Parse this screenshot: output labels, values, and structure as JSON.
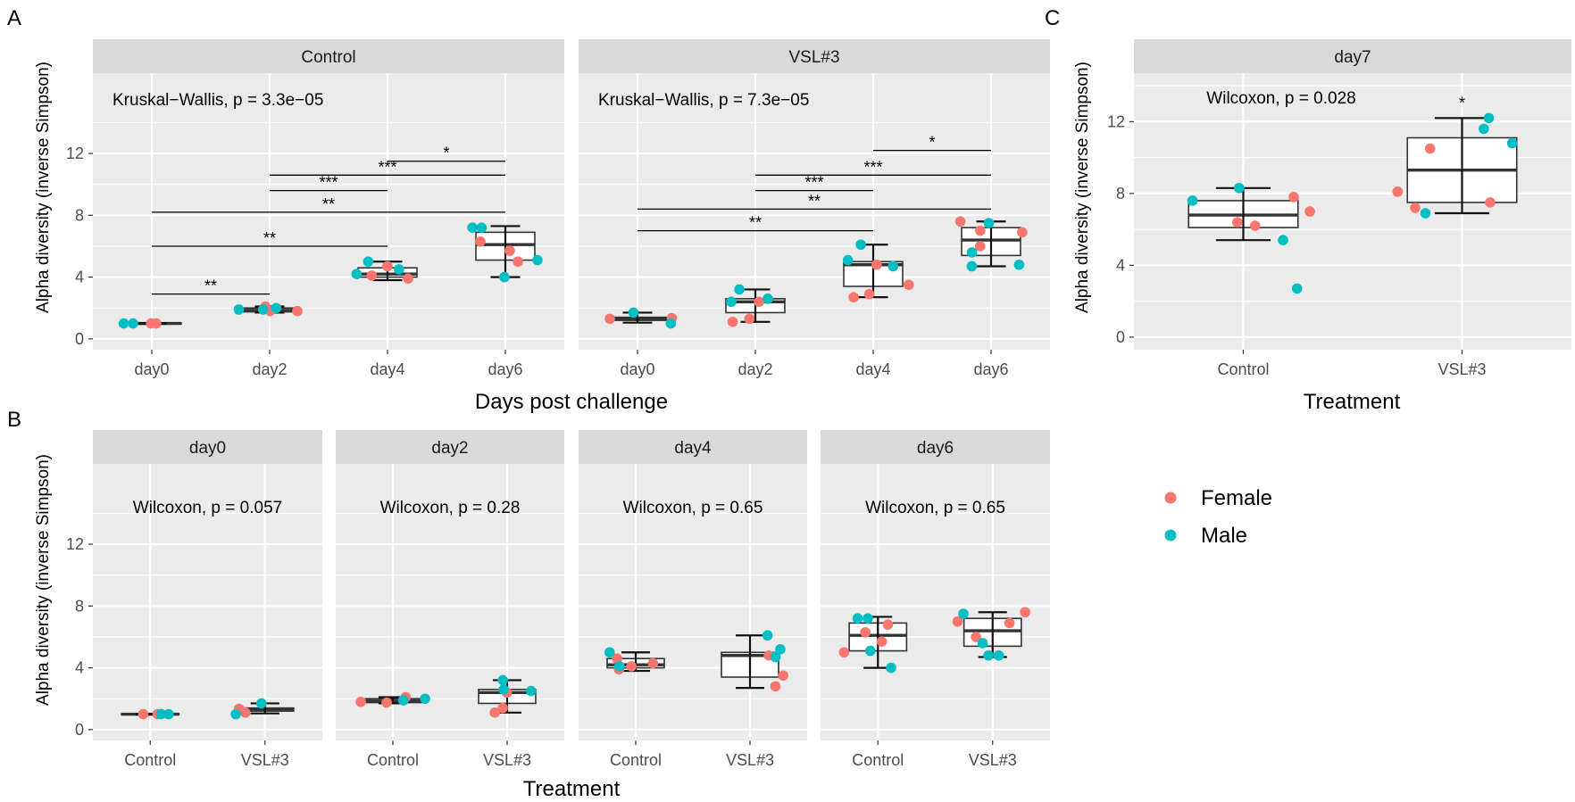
{
  "colors": {
    "Female": "#F8766D",
    "Male": "#00BFC4",
    "panel": "#EBEBEB",
    "strip": "#D9D9D9",
    "grid": "#FFFFFF",
    "box": "#333333"
  },
  "legend": {
    "items": [
      {
        "label": "Female",
        "color": "#F8766D"
      },
      {
        "label": "Male",
        "color": "#00BFC4"
      }
    ]
  },
  "chart_data": [
    {
      "tag": "A",
      "type": "box",
      "ylabel": "Alpha diversity (inverse Simpson)",
      "xlabel": "Days post challenge",
      "yticks": [
        "0",
        "4",
        "8",
        "12"
      ],
      "ylim": [
        -0.7,
        17.2
      ],
      "categories": [
        "day0",
        "day2",
        "day4",
        "day6"
      ],
      "facets": [
        {
          "strip": "Control",
          "annotation": "Kruskal−Wallis, p = 3.3e−05",
          "boxes": [
            {
              "q1": 1.0,
              "median": 1.0,
              "q3": 1.02,
              "low": 0.97,
              "high": 1.03
            },
            {
              "q1": 1.75,
              "median": 1.85,
              "q3": 2.0,
              "low": 1.7,
              "high": 2.1
            },
            {
              "q1": 4.0,
              "median": 4.2,
              "q3": 4.6,
              "low": 3.8,
              "high": 5.0
            },
            {
              "q1": 5.1,
              "median": 6.1,
              "q3": 6.9,
              "low": 4.0,
              "high": 7.3
            }
          ],
          "points": [
            {
              "x": "day0",
              "y": 1.0,
              "sex": "Female"
            },
            {
              "x": "day0",
              "y": 1.0,
              "sex": "Female"
            },
            {
              "x": "day0",
              "y": 1.0,
              "sex": "Male"
            },
            {
              "x": "day0",
              "y": 1.0,
              "sex": "Male"
            },
            {
              "x": "day2",
              "y": 2.1,
              "sex": "Female"
            },
            {
              "x": "day2",
              "y": 1.8,
              "sex": "Female"
            },
            {
              "x": "day2",
              "y": 1.9,
              "sex": "Male"
            },
            {
              "x": "day2",
              "y": 1.8,
              "sex": "Female"
            },
            {
              "x": "day2",
              "y": 2.0,
              "sex": "Male"
            },
            {
              "x": "day2",
              "y": 1.9,
              "sex": "Male"
            },
            {
              "x": "day4",
              "y": 4.1,
              "sex": "Female"
            },
            {
              "x": "day4",
              "y": 3.9,
              "sex": "Female"
            },
            {
              "x": "day4",
              "y": 4.5,
              "sex": "Male"
            },
            {
              "x": "day4",
              "y": 4.2,
              "sex": "Male"
            },
            {
              "x": "day4",
              "y": 4.7,
              "sex": "Female"
            },
            {
              "x": "day4",
              "y": 5.0,
              "sex": "Male"
            },
            {
              "x": "day6",
              "y": 5.0,
              "sex": "Female"
            },
            {
              "x": "day6",
              "y": 6.3,
              "sex": "Female"
            },
            {
              "x": "day6",
              "y": 5.7,
              "sex": "Female"
            },
            {
              "x": "day6",
              "y": 4.0,
              "sex": "Male"
            },
            {
              "x": "day6",
              "y": 7.2,
              "sex": "Male"
            },
            {
              "x": "day6",
              "y": 7.2,
              "sex": "Male"
            },
            {
              "x": "day6",
              "y": 5.1,
              "sex": "Male"
            }
          ],
          "comparisons": [
            {
              "from": "day0",
              "to": "day2",
              "y": 2.9,
              "label": "**"
            },
            {
              "from": "day0",
              "to": "day4",
              "y": 6.0,
              "label": "**"
            },
            {
              "from": "day0",
              "to": "day6",
              "y": 8.2,
              "label": "**"
            },
            {
              "from": "day2",
              "to": "day4",
              "y": 9.6,
              "label": "***"
            },
            {
              "from": "day2",
              "to": "day6",
              "y": 10.6,
              "label": "***"
            },
            {
              "from": "day4",
              "to": "day6",
              "y": 11.5,
              "label": "*"
            }
          ]
        },
        {
          "strip": "VSL#3",
          "annotation": "Kruskal−Wallis, p = 7.3e−05",
          "boxes": [
            {
              "q1": 1.2,
              "median": 1.3,
              "q3": 1.4,
              "low": 1.05,
              "high": 1.7
            },
            {
              "q1": 1.7,
              "median": 2.4,
              "q3": 2.6,
              "low": 1.1,
              "high": 3.2
            },
            {
              "q1": 3.4,
              "median": 4.8,
              "q3": 5.0,
              "low": 2.7,
              "high": 6.1
            },
            {
              "q1": 5.4,
              "median": 6.4,
              "q3": 7.2,
              "low": 4.7,
              "high": 7.6
            }
          ],
          "points": [
            {
              "x": "day0",
              "y": 1.35,
              "sex": "Female"
            },
            {
              "x": "day0",
              "y": 1.3,
              "sex": "Female"
            },
            {
              "x": "day0",
              "y": 1.7,
              "sex": "Male"
            },
            {
              "x": "day0",
              "y": 1.0,
              "sex": "Male"
            },
            {
              "x": "day2",
              "y": 1.1,
              "sex": "Female"
            },
            {
              "x": "day2",
              "y": 1.3,
              "sex": "Female"
            },
            {
              "x": "day2",
              "y": 2.4,
              "sex": "Female"
            },
            {
              "x": "day2",
              "y": 2.6,
              "sex": "Male"
            },
            {
              "x": "day2",
              "y": 3.2,
              "sex": "Male"
            },
            {
              "x": "day2",
              "y": 2.4,
              "sex": "Male"
            },
            {
              "x": "day4",
              "y": 3.5,
              "sex": "Female"
            },
            {
              "x": "day4",
              "y": 2.9,
              "sex": "Female"
            },
            {
              "x": "day4",
              "y": 2.7,
              "sex": "Female"
            },
            {
              "x": "day4",
              "y": 4.8,
              "sex": "Female"
            },
            {
              "x": "day4",
              "y": 6.1,
              "sex": "Male"
            },
            {
              "x": "day4",
              "y": 5.1,
              "sex": "Male"
            },
            {
              "x": "day4",
              "y": 4.7,
              "sex": "Male"
            },
            {
              "x": "day6",
              "y": 7.0,
              "sex": "Female"
            },
            {
              "x": "day6",
              "y": 6.0,
              "sex": "Female"
            },
            {
              "x": "day6",
              "y": 7.6,
              "sex": "Female"
            },
            {
              "x": "day6",
              "y": 6.9,
              "sex": "Female"
            },
            {
              "x": "day6",
              "y": 5.6,
              "sex": "Male"
            },
            {
              "x": "day6",
              "y": 4.8,
              "sex": "Male"
            },
            {
              "x": "day6",
              "y": 7.5,
              "sex": "Male"
            },
            {
              "x": "day6",
              "y": 4.7,
              "sex": "Male"
            }
          ],
          "comparisons": [
            {
              "from": "day0",
              "to": "day4",
              "y": 7.0,
              "label": "**"
            },
            {
              "from": "day0",
              "to": "day6",
              "y": 8.4,
              "label": "**"
            },
            {
              "from": "day2",
              "to": "day4",
              "y": 9.6,
              "label": "***"
            },
            {
              "from": "day2",
              "to": "day6",
              "y": 10.6,
              "label": "***"
            },
            {
              "from": "day4",
              "to": "day6",
              "y": 12.2,
              "label": "*"
            }
          ]
        }
      ]
    },
    {
      "tag": "B",
      "type": "box",
      "ylabel": "Alpha diversity (inverse Simpson)",
      "xlabel": "Treatment",
      "yticks": [
        "0",
        "4",
        "8",
        "12"
      ],
      "ylim": [
        -0.7,
        17.2
      ],
      "categories": [
        "Control",
        "VSL#3"
      ],
      "facets": [
        {
          "strip": "day0",
          "annotation": "Wilcoxon, p = 0.057",
          "boxes": [
            {
              "q1": 1.0,
              "median": 1.0,
              "q3": 1.02,
              "low": 0.97,
              "high": 1.03
            },
            {
              "q1": 1.2,
              "median": 1.3,
              "q3": 1.4,
              "low": 1.05,
              "high": 1.7
            }
          ],
          "points": [
            {
              "x": "Control",
              "y": 1.0,
              "sex": "Female"
            },
            {
              "x": "Control",
              "y": 1.0,
              "sex": "Female"
            },
            {
              "x": "Control",
              "y": 1.0,
              "sex": "Male"
            },
            {
              "x": "Control",
              "y": 1.0,
              "sex": "Male"
            },
            {
              "x": "VSL#3",
              "y": 1.35,
              "sex": "Female"
            },
            {
              "x": "VSL#3",
              "y": 1.1,
              "sex": "Female"
            },
            {
              "x": "VSL#3",
              "y": 1.7,
              "sex": "Male"
            },
            {
              "x": "VSL#3",
              "y": 1.0,
              "sex": "Male"
            }
          ]
        },
        {
          "strip": "day2",
          "annotation": "Wilcoxon, p = 0.28",
          "boxes": [
            {
              "q1": 1.75,
              "median": 1.85,
              "q3": 2.0,
              "low": 1.7,
              "high": 2.1
            },
            {
              "q1": 1.7,
              "median": 2.4,
              "q3": 2.6,
              "low": 1.1,
              "high": 3.2
            }
          ],
          "points": [
            {
              "x": "Control",
              "y": 1.8,
              "sex": "Female"
            },
            {
              "x": "Control",
              "y": 1.75,
              "sex": "Female"
            },
            {
              "x": "Control",
              "y": 2.1,
              "sex": "Female"
            },
            {
              "x": "Control",
              "y": 1.9,
              "sex": "Male"
            },
            {
              "x": "Control",
              "y": 2.0,
              "sex": "Male"
            },
            {
              "x": "VSL#3",
              "y": 1.1,
              "sex": "Female"
            },
            {
              "x": "VSL#3",
              "y": 1.4,
              "sex": "Female"
            },
            {
              "x": "VSL#3",
              "y": 2.4,
              "sex": "Female"
            },
            {
              "x": "VSL#3",
              "y": 3.2,
              "sex": "Male"
            },
            {
              "x": "VSL#3",
              "y": 2.5,
              "sex": "Male"
            },
            {
              "x": "VSL#3",
              "y": 2.6,
              "sex": "Male"
            }
          ]
        },
        {
          "strip": "day4",
          "annotation": "Wilcoxon, p = 0.65",
          "boxes": [
            {
              "q1": 4.0,
              "median": 4.2,
              "q3": 4.6,
              "low": 3.8,
              "high": 5.0
            },
            {
              "q1": 3.4,
              "median": 4.8,
              "q3": 5.0,
              "low": 2.7,
              "high": 6.1
            }
          ],
          "points": [
            {
              "x": "Control",
              "y": 4.1,
              "sex": "Female"
            },
            {
              "x": "Control",
              "y": 3.9,
              "sex": "Female"
            },
            {
              "x": "Control",
              "y": 4.6,
              "sex": "Female"
            },
            {
              "x": "Control",
              "y": 4.3,
              "sex": "Female"
            },
            {
              "x": "Control",
              "y": 5.0,
              "sex": "Male"
            },
            {
              "x": "Control",
              "y": 4.1,
              "sex": "Male"
            },
            {
              "x": "VSL#3",
              "y": 4.8,
              "sex": "Female"
            },
            {
              "x": "VSL#3",
              "y": 2.8,
              "sex": "Female"
            },
            {
              "x": "VSL#3",
              "y": 3.5,
              "sex": "Female"
            },
            {
              "x": "VSL#3",
              "y": 5.2,
              "sex": "Male"
            },
            {
              "x": "VSL#3",
              "y": 4.7,
              "sex": "Male"
            },
            {
              "x": "VSL#3",
              "y": 6.1,
              "sex": "Male"
            }
          ]
        },
        {
          "strip": "day6",
          "annotation": "Wilcoxon, p = 0.65",
          "boxes": [
            {
              "q1": 5.1,
              "median": 6.1,
              "q3": 6.9,
              "low": 4.0,
              "high": 7.3
            },
            {
              "q1": 5.4,
              "median": 6.4,
              "q3": 7.2,
              "low": 4.7,
              "high": 7.6
            }
          ],
          "points": [
            {
              "x": "Control",
              "y": 6.8,
              "sex": "Female"
            },
            {
              "x": "Control",
              "y": 5.7,
              "sex": "Female"
            },
            {
              "x": "Control",
              "y": 5.0,
              "sex": "Female"
            },
            {
              "x": "Control",
              "y": 6.3,
              "sex": "Female"
            },
            {
              "x": "Control",
              "y": 7.2,
              "sex": "Male"
            },
            {
              "x": "Control",
              "y": 7.2,
              "sex": "Male"
            },
            {
              "x": "Control",
              "y": 5.1,
              "sex": "Male"
            },
            {
              "x": "Control",
              "y": 4.0,
              "sex": "Male"
            },
            {
              "x": "VSL#3",
              "y": 6.9,
              "sex": "Female"
            },
            {
              "x": "VSL#3",
              "y": 6.0,
              "sex": "Female"
            },
            {
              "x": "VSL#3",
              "y": 7.6,
              "sex": "Female"
            },
            {
              "x": "VSL#3",
              "y": 7.0,
              "sex": "Female"
            },
            {
              "x": "VSL#3",
              "y": 5.6,
              "sex": "Male"
            },
            {
              "x": "VSL#3",
              "y": 4.8,
              "sex": "Male"
            },
            {
              "x": "VSL#3",
              "y": 4.8,
              "sex": "Male"
            },
            {
              "x": "VSL#3",
              "y": 7.5,
              "sex": "Male"
            }
          ]
        }
      ]
    },
    {
      "tag": "C",
      "type": "box",
      "ylabel": "Alpha diversity (inverse Simpson)",
      "xlabel": "Treatment",
      "yticks": [
        "0",
        "4",
        "8",
        "12"
      ],
      "ylim": [
        -0.7,
        14.7
      ],
      "categories": [
        "Control",
        "VSL#3"
      ],
      "facets": [
        {
          "strip": "day7",
          "annotation": "Wilcoxon, p = 0.028",
          "boxes": [
            {
              "q1": 6.1,
              "median": 6.8,
              "q3": 7.6,
              "low": 5.4,
              "high": 8.3
            },
            {
              "q1": 7.5,
              "median": 9.3,
              "q3": 11.1,
              "low": 6.9,
              "high": 12.2
            }
          ],
          "points": [
            {
              "x": "Control",
              "y": 7.0,
              "sex": "Female"
            },
            {
              "x": "Control",
              "y": 6.4,
              "sex": "Female"
            },
            {
              "x": "Control",
              "y": 7.8,
              "sex": "Female"
            },
            {
              "x": "Control",
              "y": 6.2,
              "sex": "Female"
            },
            {
              "x": "Control",
              "y": 8.3,
              "sex": "Male"
            },
            {
              "x": "Control",
              "y": 7.6,
              "sex": "Male"
            },
            {
              "x": "Control",
              "y": 5.4,
              "sex": "Male"
            },
            {
              "x": "Control",
              "y": 2.7,
              "sex": "Male"
            },
            {
              "x": "VSL#3",
              "y": 10.5,
              "sex": "Female"
            },
            {
              "x": "VSL#3",
              "y": 8.1,
              "sex": "Female"
            },
            {
              "x": "VSL#3",
              "y": 7.2,
              "sex": "Female"
            },
            {
              "x": "VSL#3",
              "y": 7.5,
              "sex": "Female"
            },
            {
              "x": "VSL#3",
              "y": 12.2,
              "sex": "Male"
            },
            {
              "x": "VSL#3",
              "y": 11.6,
              "sex": "Male"
            },
            {
              "x": "VSL#3",
              "y": 10.8,
              "sex": "Male"
            },
            {
              "x": "VSL#3",
              "y": 6.9,
              "sex": "Male"
            }
          ],
          "comparisons": [
            {
              "from": "VSL#3",
              "to": "VSL#3",
              "y": 12.6,
              "label": "*"
            }
          ]
        }
      ]
    }
  ]
}
